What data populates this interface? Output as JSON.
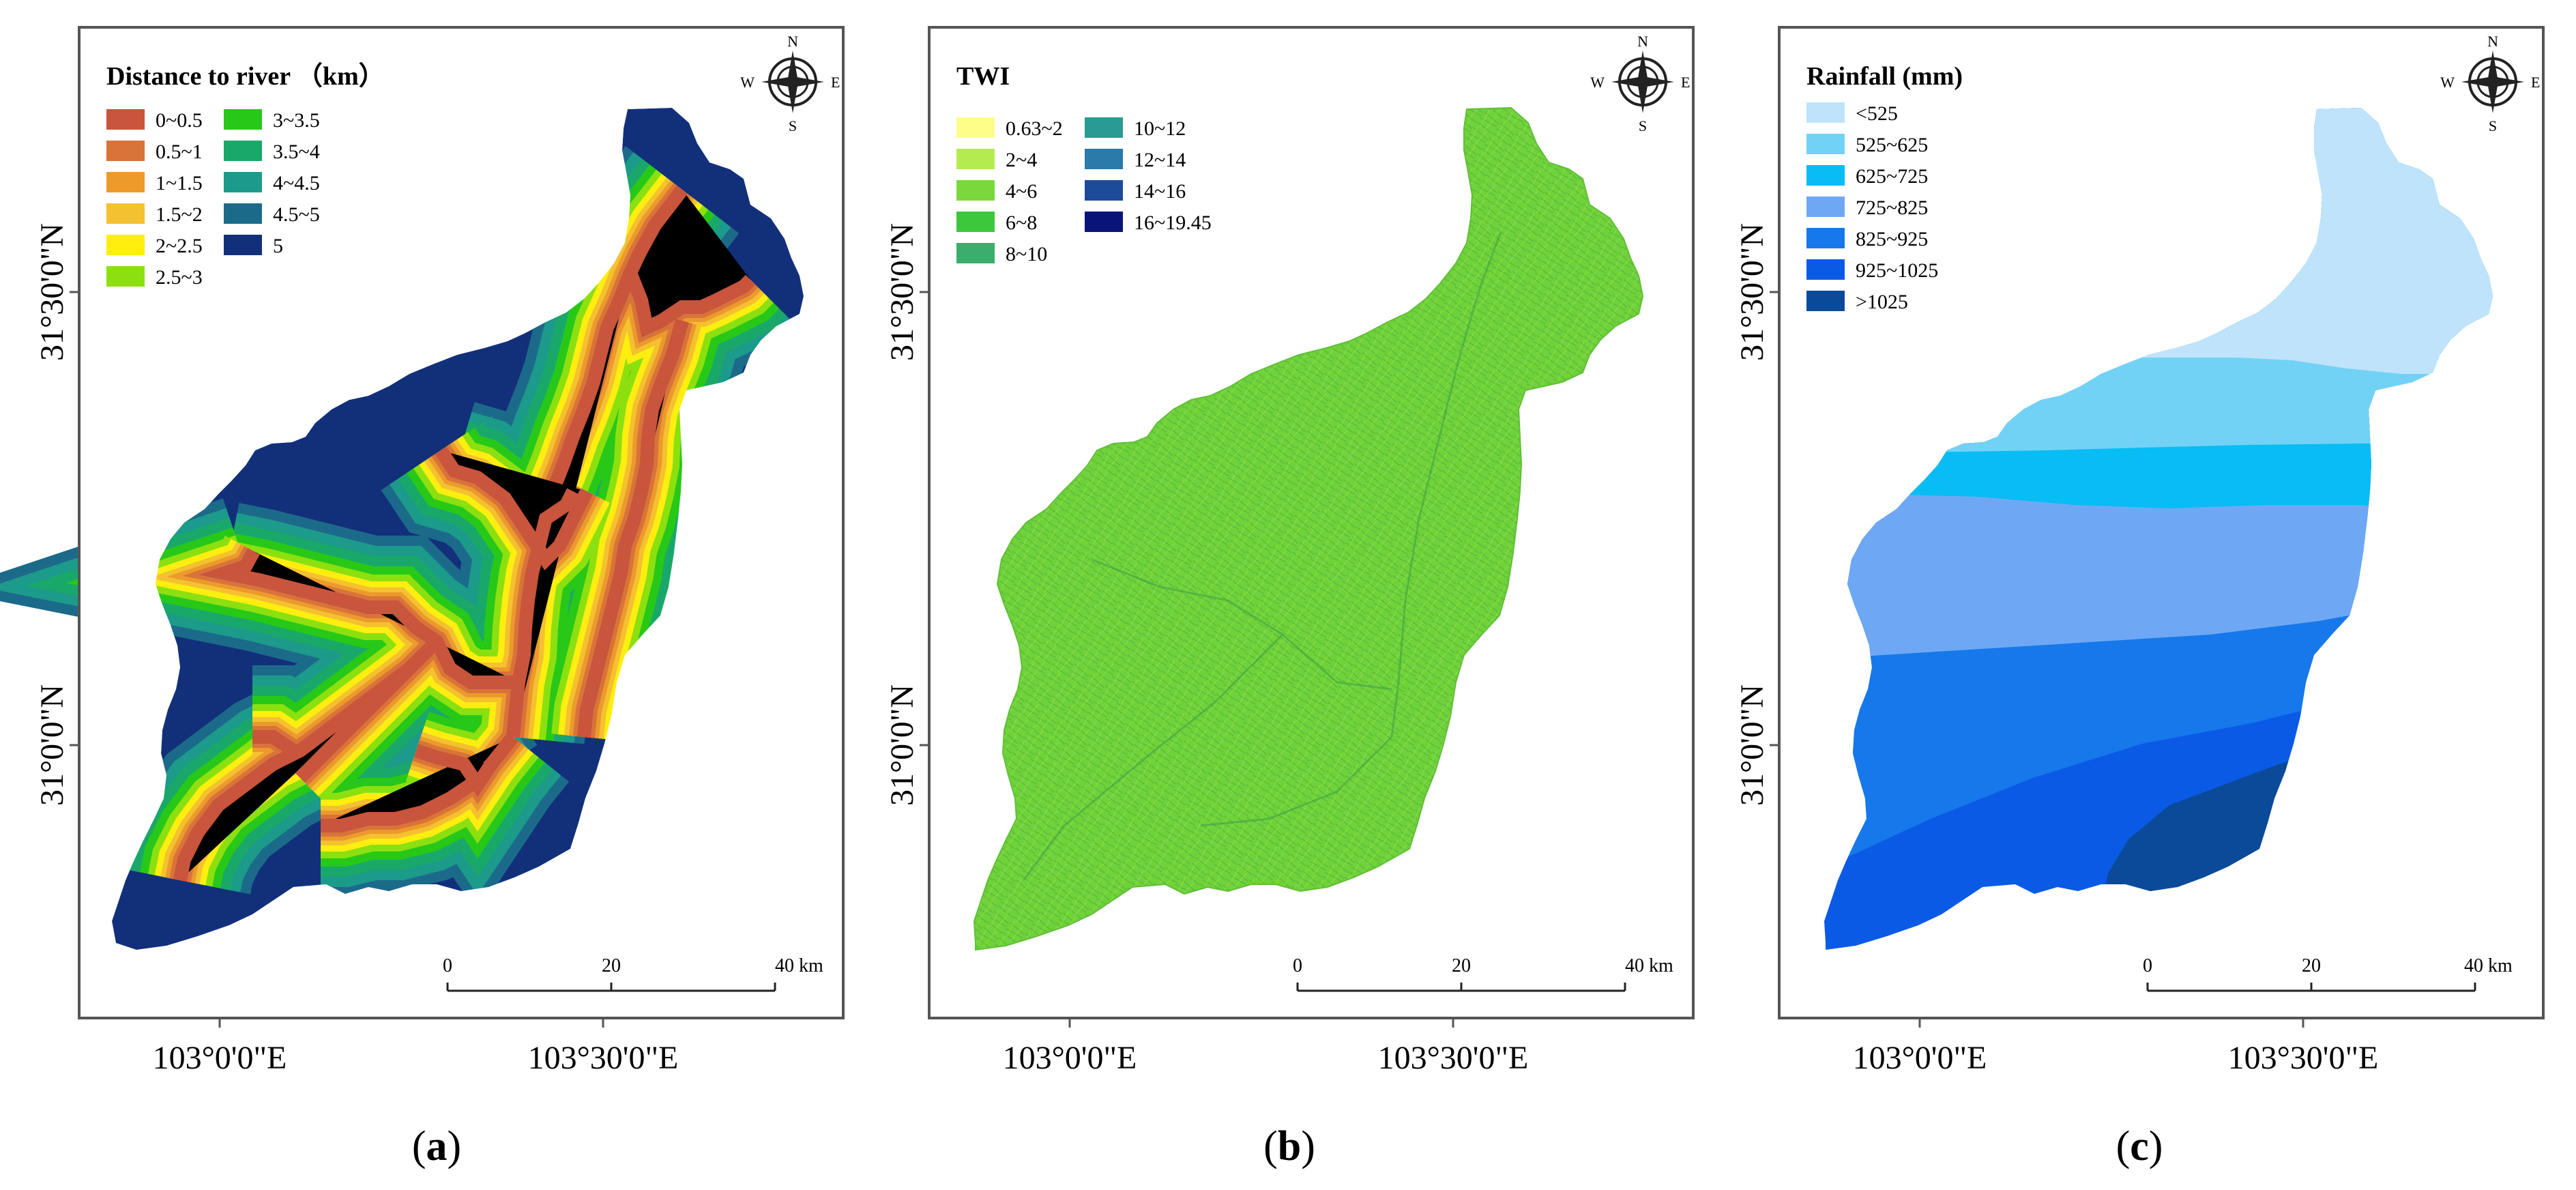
{
  "panels": [
    {
      "id": "a",
      "legend_title": "Distance to river （km）",
      "legend": [
        {
          "label": "0~0.5",
          "color": "#c8553c"
        },
        {
          "label": "0.5~1",
          "color": "#d8733a"
        },
        {
          "label": "1~1.5",
          "color": "#ec9a2c"
        },
        {
          "label": "1.5~2",
          "color": "#f4c130"
        },
        {
          "label": "2~2.5",
          "color": "#ffee10"
        },
        {
          "label": "2.5~3",
          "color": "#8ce010"
        },
        {
          "label": "3~3.5",
          "color": "#28c818"
        },
        {
          "label": "3.5~4",
          "color": "#1aa86a"
        },
        {
          "label": "4~4.5",
          "color": "#1c9a8a"
        },
        {
          "label": "4.5~5",
          "color": "#1c6a8a"
        },
        {
          "label": "5",
          "color": "#12307a"
        }
      ],
      "caption": "(a)"
    },
    {
      "id": "b",
      "legend_title": "TWI",
      "legend": [
        {
          "label": "0.63~2",
          "color": "#fdfd8a"
        },
        {
          "label": "2~4",
          "color": "#b4ec50"
        },
        {
          "label": "4~6",
          "color": "#7ad83c"
        },
        {
          "label": "6~8",
          "color": "#3cc83c"
        },
        {
          "label": "8~10",
          "color": "#3aae6a"
        },
        {
          "label": "10~12",
          "color": "#2a9a94"
        },
        {
          "label": "12~14",
          "color": "#2a7aaa"
        },
        {
          "label": "14~16",
          "color": "#1e4a9a"
        },
        {
          "label": "16~19.45",
          "color": "#0a1478"
        }
      ],
      "caption": "(b)"
    },
    {
      "id": "c",
      "legend_title": "Rainfall (mm)",
      "legend": [
        {
          "label": "<525",
          "color": "#bfe3fa"
        },
        {
          "label": "525~625",
          "color": "#72d2f6"
        },
        {
          "label": "625~725",
          "color": "#08bcf4"
        },
        {
          "label": "725~825",
          "color": "#6ea8f4"
        },
        {
          "label": "825~925",
          "color": "#1678ea"
        },
        {
          "label": "925~1025",
          "color": "#0a5ae6"
        },
        {
          "label": ">1025",
          "color": "#0a4a98"
        }
      ],
      "caption": "(c)"
    }
  ],
  "axes": {
    "x_ticks": [
      "103°0'0\"E",
      "103°30'0\"E"
    ],
    "y_ticks": [
      "31°30'0\"N",
      "31°0'0\"N"
    ]
  },
  "scalebar": {
    "labels": [
      "0",
      "20",
      "40 km"
    ]
  },
  "compass": {
    "n": "N",
    "s": "S",
    "e": "E",
    "w": "W"
  },
  "colors": {
    "watershed_bg": "#12307a",
    "twi_fill": "#6fd23a",
    "frame": "#555555"
  }
}
